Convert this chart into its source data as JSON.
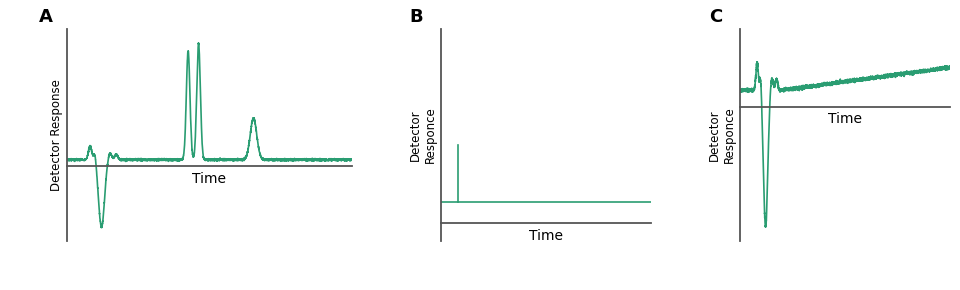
{
  "panel_labels": [
    "A",
    "B",
    "C"
  ],
  "line_color": "#2a9d72",
  "line_width": 1.2,
  "bg_color": "#ffffff",
  "xlabel": "Time",
  "ylabel_A": "Detector Response",
  "ylabel_BC": "Detector\nResponce",
  "axis_color": "#555555",
  "label_fontsize": 8.5,
  "panel_label_fontsize": 13,
  "xlabel_fontsize": 10
}
